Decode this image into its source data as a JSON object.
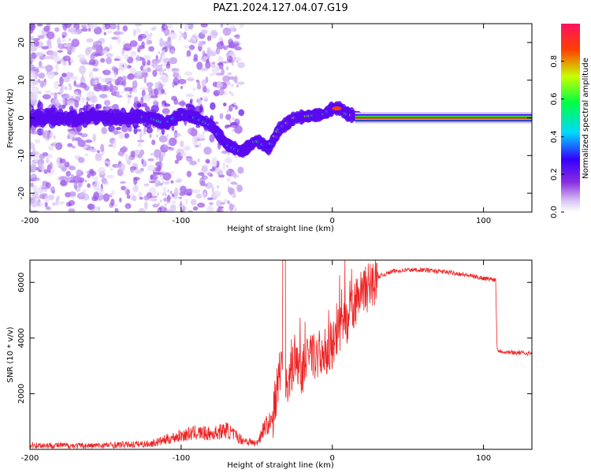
{
  "title": "PAZ1.2024.127.04.07.G19",
  "chart_data": [
    {
      "type": "heatmap",
      "xlabel": "Height of straight line (km)",
      "ylabel": "Frequency (Hz)",
      "xlim": [
        -200,
        132
      ],
      "ylim": [
        -25,
        25
      ],
      "x_ticks": [
        -200,
        -100,
        0,
        100
      ],
      "y_ticks": [
        -20,
        -10,
        0,
        10,
        20
      ],
      "colorbar": {
        "label": "Normalized spectral amplitude",
        "range": [
          0,
          1
        ],
        "ticks": [
          0.0,
          0.2,
          0.4,
          0.6,
          0.8
        ],
        "tick_labels": [
          "0.0",
          "0.2",
          "0.4",
          "0.6",
          "0.8"
        ],
        "colormap": [
          "#ffffff",
          "#d8c4f4",
          "#8a2be2",
          "#3300ff",
          "#00d8ff",
          "#00ff44",
          "#c8ff00",
          "#ff4000",
          "#ff1060"
        ]
      },
      "ridge": {
        "x": [
          -130,
          -120,
          -110,
          -100,
          -90,
          -80,
          -70,
          -60,
          -50,
          -42,
          -35,
          -25,
          -15,
          -5,
          0,
          5,
          10,
          15,
          20,
          40,
          60,
          80,
          100,
          132
        ],
        "y": [
          0.5,
          0,
          -1.5,
          1,
          0,
          -2,
          -7,
          -9,
          -6,
          -8,
          -3,
          0,
          0.5,
          1,
          2.5,
          2.5,
          1,
          0.5,
          0,
          0,
          0,
          0,
          0,
          0
        ]
      }
    },
    {
      "type": "line",
      "xlabel": "Height of straight line (km)",
      "ylabel": "SNR (10 * v/v)",
      "xlim": [
        -200,
        132
      ],
      "ylim": [
        0,
        6800
      ],
      "x_ticks": [
        -200,
        -100,
        0,
        100
      ],
      "y_ticks": [
        2000,
        4000,
        6000
      ],
      "series": [
        {
          "color": "#ee2222",
          "x": [
            -200,
            -160,
            -120,
            -110,
            -100,
            -90,
            -80,
            -70,
            -60,
            -50,
            -45,
            -40,
            -36,
            -33,
            -30,
            -28,
            -25,
            -20,
            -15,
            -10,
            -5,
            0,
            5,
            10,
            15,
            20,
            25,
            30,
            40,
            50,
            60,
            70,
            80,
            90,
            100,
            108,
            109,
            110,
            115,
            120,
            132
          ],
          "y": [
            150,
            130,
            200,
            350,
            500,
            600,
            550,
            700,
            350,
            200,
            800,
            1000,
            2500,
            3200,
            2200,
            2800,
            3300,
            2800,
            3400,
            3300,
            3600,
            3600,
            4300,
            4600,
            5200,
            5600,
            5900,
            6200,
            6400,
            6450,
            6450,
            6400,
            6350,
            6250,
            6150,
            6100,
            3600,
            3550,
            3500,
            3480,
            3450
          ]
        }
      ]
    }
  ]
}
